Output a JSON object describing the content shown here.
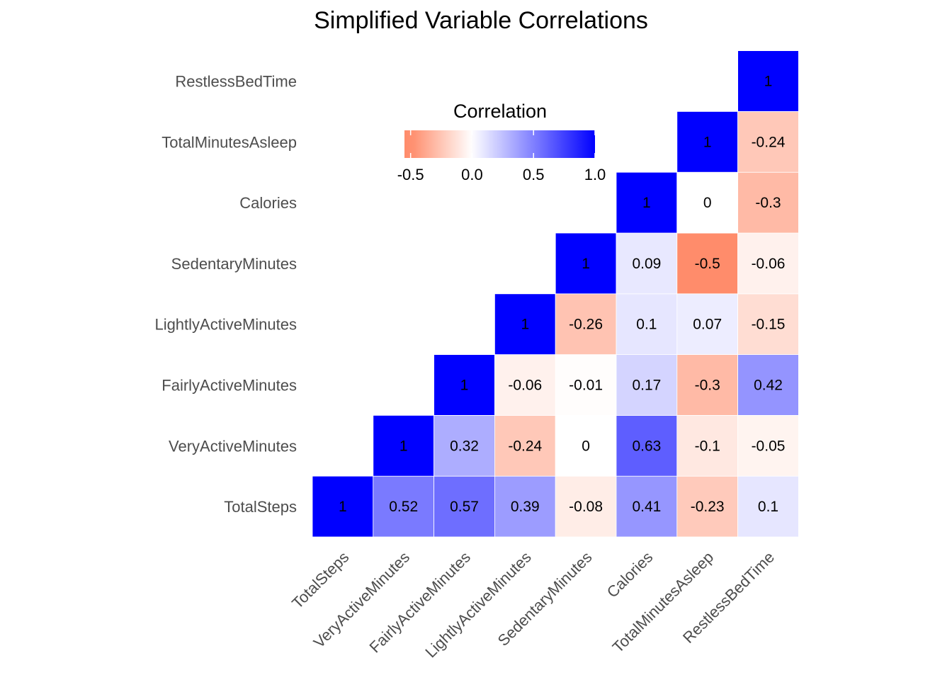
{
  "chart_data": {
    "type": "heatmap",
    "title": "Simplified Variable Correlations",
    "variables": [
      "TotalSteps",
      "VeryActiveMinutes",
      "FairlyActiveMinutes",
      "LightlyActiveMinutes",
      "SedentaryMinutes",
      "Calories",
      "TotalMinutesAsleep",
      "RestlessBedTime"
    ],
    "matrix": [
      [
        1,
        0.52,
        0.57,
        0.39,
        -0.08,
        0.41,
        -0.23,
        0.1
      ],
      [
        null,
        1,
        0.32,
        -0.24,
        0,
        0.63,
        -0.1,
        -0.05
      ],
      [
        null,
        null,
        1,
        -0.06,
        -0.01,
        0.17,
        -0.3,
        0.42
      ],
      [
        null,
        null,
        null,
        1,
        -0.26,
        0.1,
        0.07,
        -0.15
      ],
      [
        null,
        null,
        null,
        null,
        1,
        0.09,
        -0.5,
        -0.06
      ],
      [
        null,
        null,
        null,
        null,
        null,
        1,
        0,
        -0.3
      ],
      [
        null,
        null,
        null,
        null,
        null,
        null,
        1,
        -0.24
      ],
      [
        null,
        null,
        null,
        null,
        null,
        null,
        null,
        1
      ]
    ],
    "legend": {
      "title": "Correlation",
      "ticks": [
        "-0.5",
        "0.0",
        "0.5",
        "1.0"
      ],
      "tick_values": [
        -0.5,
        0,
        0.5,
        1
      ],
      "range": [
        -0.55,
        1.0
      ],
      "placement": "top-left inside plot"
    },
    "colors": {
      "low": "#ff8c6b",
      "mid": "#ffffff",
      "high": "#0000ff"
    }
  }
}
